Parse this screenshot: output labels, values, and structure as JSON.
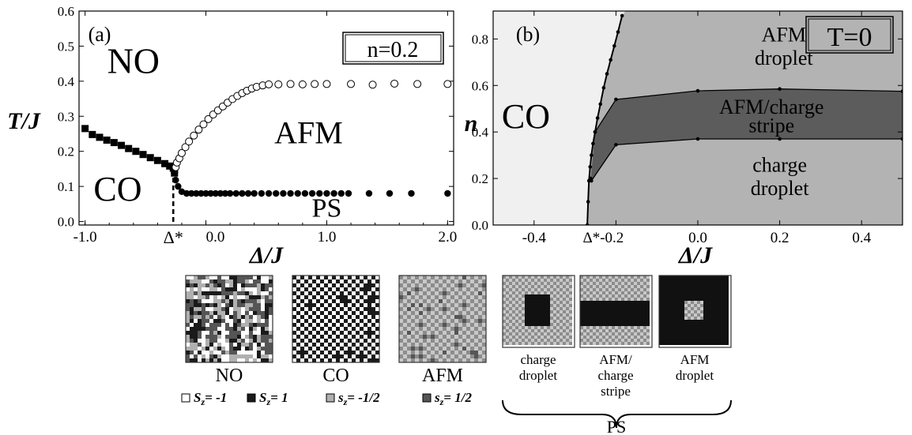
{
  "chart_data": [
    {
      "panel": "(a)",
      "type": "scatter",
      "xlabel": "Δ/J",
      "ylabel": "T/J",
      "xlim": [
        -1.05,
        2.05
      ],
      "ylim": [
        -0.01,
        0.6
      ],
      "x_ticks": [
        "-1.0",
        "0.0",
        "1.0",
        "2.0"
      ],
      "x_tick_values": [
        -1.0,
        0.0,
        1.0,
        2.0
      ],
      "y_ticks": [
        "0.0",
        "0.1",
        "0.2",
        "0.3",
        "0.4",
        "0.5",
        "0.6"
      ],
      "y_tick_values": [
        0.0,
        0.1,
        0.2,
        0.3,
        0.4,
        0.5,
        0.6
      ],
      "delta_star": {
        "label": "Δ*",
        "x": -0.27,
        "y_top": 0.125
      },
      "box_label": "n=0.2",
      "region_labels": [
        {
          "text": "NO",
          "x": -0.6,
          "y": 0.46
        },
        {
          "text": "AFM",
          "x": 0.85,
          "y": 0.255
        },
        {
          "text": "CO",
          "x": -0.73,
          "y": 0.095
        },
        {
          "text": "PS",
          "x": 1.0,
          "y": 0.04
        }
      ],
      "series": [
        {
          "marker": "filled-square",
          "points": [
            [
              -1.0,
              0.265
            ],
            [
              -0.94,
              0.248
            ],
            [
              -0.88,
              0.24
            ],
            [
              -0.82,
              0.232
            ],
            [
              -0.76,
              0.225
            ],
            [
              -0.7,
              0.217
            ],
            [
              -0.64,
              0.208
            ],
            [
              -0.58,
              0.2
            ],
            [
              -0.52,
              0.191
            ],
            [
              -0.46,
              0.182
            ],
            [
              -0.4,
              0.174
            ],
            [
              -0.34,
              0.165
            ],
            [
              -0.3,
              0.158
            ],
            [
              -0.27,
              0.152
            ],
            [
              -0.26,
              0.146
            ],
            [
              -0.26,
              0.138
            ]
          ]
        },
        {
          "marker": "open-circle",
          "points": [
            [
              -0.25,
              0.155
            ],
            [
              -0.24,
              0.168
            ],
            [
              -0.22,
              0.18
            ],
            [
              -0.2,
              0.195
            ],
            [
              -0.17,
              0.212
            ],
            [
              -0.14,
              0.228
            ],
            [
              -0.1,
              0.245
            ],
            [
              -0.06,
              0.262
            ],
            [
              -0.02,
              0.277
            ],
            [
              0.02,
              0.292
            ],
            [
              0.06,
              0.305
            ],
            [
              0.1,
              0.317
            ],
            [
              0.14,
              0.328
            ],
            [
              0.18,
              0.339
            ],
            [
              0.22,
              0.349
            ],
            [
              0.26,
              0.358
            ],
            [
              0.3,
              0.366
            ],
            [
              0.34,
              0.373
            ],
            [
              0.38,
              0.379
            ],
            [
              0.42,
              0.384
            ],
            [
              0.47,
              0.388
            ],
            [
              0.52,
              0.391
            ],
            [
              0.6,
              0.391
            ],
            [
              0.7,
              0.392
            ],
            [
              0.8,
              0.391
            ],
            [
              0.9,
              0.392
            ],
            [
              1.0,
              0.392
            ],
            [
              1.2,
              0.392
            ],
            [
              1.38,
              0.39
            ],
            [
              1.56,
              0.393
            ],
            [
              1.75,
              0.392
            ],
            [
              2.0,
              0.392
            ]
          ]
        },
        {
          "marker": "filled-circle",
          "points": [
            [
              -0.25,
              0.118
            ],
            [
              -0.23,
              0.1
            ],
            [
              -0.2,
              0.085
            ],
            [
              -0.16,
              0.08
            ],
            [
              -0.12,
              0.08
            ],
            [
              -0.08,
              0.08
            ],
            [
              -0.04,
              0.08
            ],
            [
              0.0,
              0.08
            ],
            [
              0.04,
              0.08
            ],
            [
              0.08,
              0.08
            ],
            [
              0.12,
              0.08
            ],
            [
              0.16,
              0.08
            ],
            [
              0.2,
              0.08
            ],
            [
              0.25,
              0.08
            ],
            [
              0.3,
              0.08
            ],
            [
              0.35,
              0.08
            ],
            [
              0.4,
              0.08
            ],
            [
              0.46,
              0.08
            ],
            [
              0.52,
              0.08
            ],
            [
              0.58,
              0.08
            ],
            [
              0.64,
              0.08
            ],
            [
              0.7,
              0.08
            ],
            [
              0.76,
              0.08
            ],
            [
              0.82,
              0.08
            ],
            [
              0.88,
              0.08
            ],
            [
              0.94,
              0.08
            ],
            [
              1.0,
              0.08
            ],
            [
              1.06,
              0.08
            ],
            [
              1.12,
              0.08
            ],
            [
              1.18,
              0.08
            ],
            [
              1.35,
              0.08
            ],
            [
              1.52,
              0.08
            ],
            [
              1.7,
              0.08
            ],
            [
              2.0,
              0.08
            ]
          ]
        }
      ]
    },
    {
      "panel": "(b)",
      "type": "area",
      "xlabel": "Δ/J",
      "ylabel": "n",
      "xlim": [
        -0.5,
        0.5
      ],
      "ylim": [
        0.0,
        0.92
      ],
      "x_ticks": [
        "-0.4",
        "Δ*-0.2",
        "0.0",
        "0.2",
        "0.4"
      ],
      "x_tick_values": [
        -0.4,
        -0.2,
        0.0,
        0.2,
        0.4
      ],
      "y_ticks": [
        "0.0",
        "0.2",
        "0.4",
        "0.6",
        "0.8"
      ],
      "y_tick_values": [
        0.0,
        0.2,
        0.4,
        0.6,
        0.8
      ],
      "box_label": "T=0",
      "colors": {
        "co_region": "#f0f0f0",
        "droplet_region": "#b3b3b3",
        "stripe_region": "#5c5c5c",
        "line": "#000000"
      },
      "co_boundary": [
        [
          -0.27,
          0.0
        ],
        [
          -0.268,
          0.1
        ],
        [
          -0.266,
          0.19
        ],
        [
          -0.263,
          0.25
        ],
        [
          -0.26,
          0.3
        ],
        [
          -0.256,
          0.35
        ],
        [
          -0.251,
          0.4
        ],
        [
          -0.245,
          0.46
        ],
        [
          -0.238,
          0.52
        ],
        [
          -0.23,
          0.59
        ],
        [
          -0.222,
          0.65
        ],
        [
          -0.213,
          0.71
        ],
        [
          -0.204,
          0.77
        ],
        [
          -0.195,
          0.83
        ],
        [
          -0.185,
          0.9
        ]
      ],
      "stripe_upper": [
        [
          -0.251,
          0.4
        ],
        [
          -0.2,
          0.54
        ],
        [
          0.0,
          0.577
        ],
        [
          0.2,
          0.585
        ],
        [
          0.5,
          0.575
        ]
      ],
      "stripe_lower": [
        [
          -0.262,
          0.2
        ],
        [
          -0.26,
          0.19
        ],
        [
          -0.2,
          0.345
        ],
        [
          0.0,
          0.37
        ],
        [
          0.2,
          0.37
        ],
        [
          0.5,
          0.37
        ]
      ],
      "region_labels": [
        {
          "text": "CO",
          "x": -0.42,
          "y": 0.47
        },
        {
          "text": "AFM",
          "x": 0.21,
          "y": 0.82
        },
        {
          "text": "droplet",
          "x": 0.21,
          "y": 0.72
        },
        {
          "text": "AFM/charge",
          "x": 0.18,
          "y": 0.51
        },
        {
          "text": "stripe",
          "x": 0.18,
          "y": 0.43
        },
        {
          "text": "charge",
          "x": 0.2,
          "y": 0.26
        },
        {
          "text": "droplet",
          "x": 0.2,
          "y": 0.16
        }
      ]
    }
  ],
  "snapshots": {
    "labels": [
      "NO",
      "CO",
      "AFM"
    ],
    "ps_labels": [
      [
        "charge",
        "droplet"
      ],
      [
        "AFM/",
        "charge",
        "stripe"
      ],
      [
        "AFM",
        "droplet"
      ]
    ],
    "ps_group": "PS"
  },
  "legend": {
    "items": [
      {
        "text": "S",
        "sub": "z",
        "value": "= -1",
        "color": "#ffffff"
      },
      {
        "text": "S",
        "sub": "z",
        "value": "= 1",
        "color": "#1a1a1a"
      },
      {
        "text": "s",
        "sub": "z",
        "value": "= -1/2",
        "color": "#b0b0b0"
      },
      {
        "text": "s",
        "sub": "z",
        "value": "= 1/2",
        "color": "#555555"
      }
    ]
  }
}
